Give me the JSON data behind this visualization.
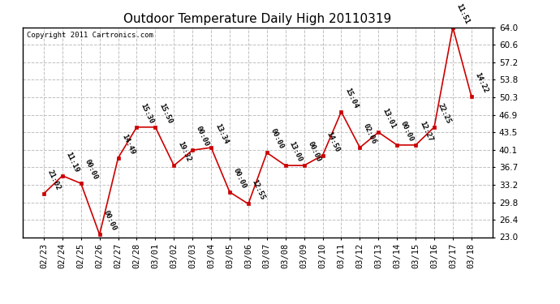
{
  "title": "Outdoor Temperature Daily High 20110319",
  "copyright": "Copyright 2011 Cartronics.com",
  "x_labels": [
    "02/23",
    "02/24",
    "02/25",
    "02/26",
    "02/27",
    "02/28",
    "03/01",
    "03/02",
    "03/03",
    "03/04",
    "03/05",
    "03/06",
    "03/07",
    "03/08",
    "03/09",
    "03/10",
    "03/11",
    "03/12",
    "03/13",
    "03/14",
    "03/15",
    "03/16",
    "03/17",
    "03/18"
  ],
  "y_values": [
    31.5,
    35.0,
    33.5,
    23.5,
    38.5,
    44.5,
    44.5,
    37.0,
    40.0,
    40.5,
    31.8,
    29.5,
    39.5,
    37.0,
    37.0,
    39.0,
    47.5,
    40.5,
    43.5,
    41.0,
    41.0,
    44.5,
    64.0,
    50.5
  ],
  "point_labels": [
    "21:02",
    "11:19",
    "00:00",
    "00:00",
    "14:49",
    "15:30",
    "15:50",
    "19:32",
    "00:00",
    "13:34",
    "00:00",
    "12:55",
    "00:00",
    "13:00",
    "00:00",
    "14:50",
    "15:04",
    "02:06",
    "13:01",
    "00:00",
    "12:27",
    "22:25",
    "11:51",
    "14:22"
  ],
  "line_color": "#cc0000",
  "marker_color": "#cc0000",
  "background_color": "#ffffff",
  "grid_color": "#c0c0c0",
  "title_fontsize": 11,
  "tick_label_fontsize": 7.5,
  "annotation_fontsize": 6.5,
  "ylim": [
    23.0,
    64.0
  ],
  "yticks": [
    23.0,
    26.4,
    29.8,
    33.2,
    36.7,
    40.1,
    43.5,
    46.9,
    50.3,
    53.8,
    57.2,
    60.6,
    64.0
  ]
}
